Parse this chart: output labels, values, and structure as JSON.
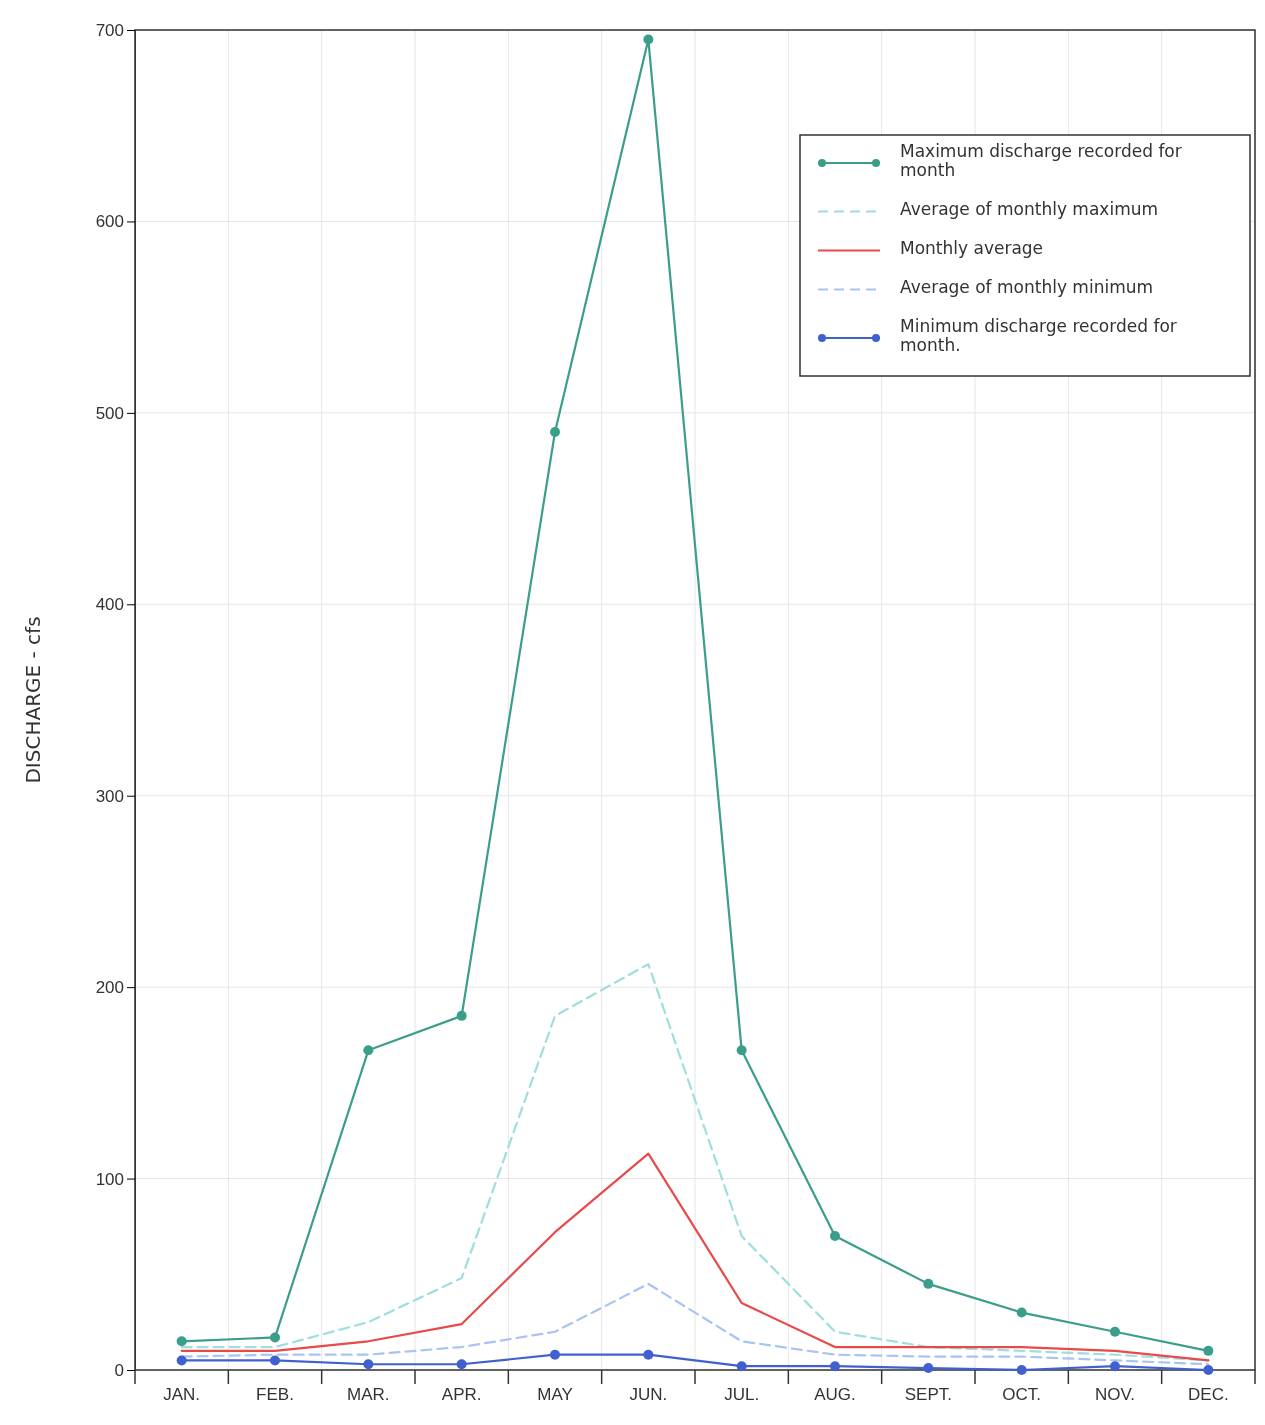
{
  "chart_data": {
    "type": "line",
    "ylabel": "DISCHARGE  -  cfs",
    "categories": [
      "JAN.",
      "FEB.",
      "MAR.",
      "APR.",
      "MAY",
      "JUN.",
      "JUL.",
      "AUG.",
      "SEPT.",
      "OCT.",
      "NOV.",
      "DEC."
    ],
    "ylim": [
      0,
      700
    ],
    "yticks": [
      0,
      100,
      200,
      300,
      400,
      500,
      600,
      700
    ],
    "grid": true,
    "legend": "top right",
    "series": [
      {
        "name": "Maximum discharge recorded for month",
        "color": "#3a9e8a",
        "marker": "circle",
        "line_style": "solid",
        "values": [
          15,
          17,
          167,
          185,
          490,
          695,
          167,
          70,
          45,
          30,
          20,
          10
        ]
      },
      {
        "name": "Average of monthly maximum",
        "color": "#9fdede",
        "marker": "none",
        "line_style": "dashed",
        "values": [
          12,
          12,
          25,
          48,
          185,
          212,
          70,
          20,
          12,
          10,
          8,
          5
        ]
      },
      {
        "name": "Monthly average",
        "color": "#e84a4a",
        "marker": "none",
        "line_style": "solid",
        "values": [
          10,
          10,
          15,
          24,
          72,
          113,
          35,
          12,
          12,
          12,
          10,
          5
        ]
      },
      {
        "name": "Average of monthly minimum",
        "color": "#a8c4f0",
        "marker": "none",
        "line_style": "dashed",
        "values": [
          7,
          8,
          8,
          12,
          20,
          45,
          15,
          8,
          7,
          7,
          5,
          3
        ]
      },
      {
        "name": "Minimum discharge recorded for month.",
        "color": "#4060d0",
        "marker": "circle",
        "line_style": "solid",
        "values": [
          5,
          5,
          3,
          3,
          8,
          8,
          2,
          2,
          1,
          0,
          2,
          0
        ]
      }
    ]
  }
}
